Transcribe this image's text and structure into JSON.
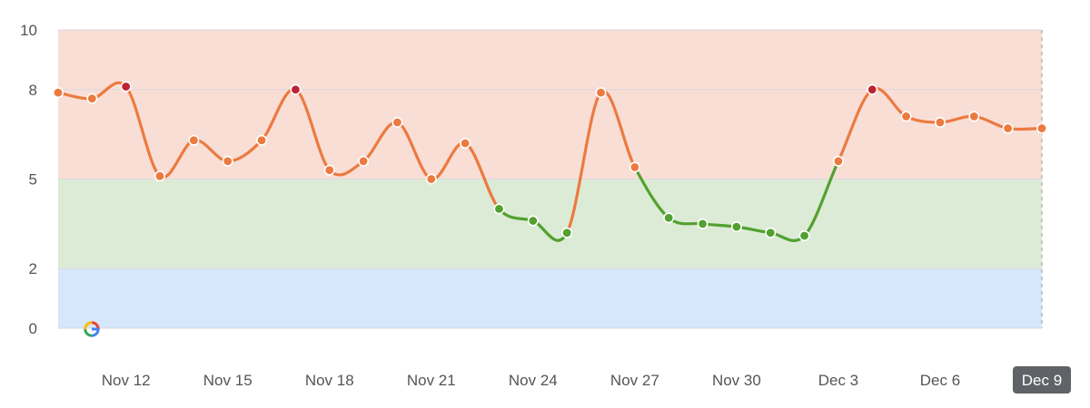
{
  "chart_data": {
    "type": "line",
    "title": "",
    "xlabel": "",
    "ylabel": "",
    "ylim": [
      0,
      10
    ],
    "y_ticks": [
      "0",
      "2",
      "5",
      "8",
      "10"
    ],
    "x_tick_labels": [
      "Nov 12",
      "Nov 15",
      "Nov 18",
      "Nov 21",
      "Nov 24",
      "Nov 27",
      "Nov 30",
      "Dec 3",
      "Dec 6",
      "Dec 9"
    ],
    "highlighted_x_label": "Dec 9",
    "grid": true,
    "zones": [
      {
        "from": 0,
        "to": 2,
        "color": "#d6e6fb"
      },
      {
        "from": 2,
        "to": 5,
        "color": "#dcebd6"
      },
      {
        "from": 5,
        "to": 10,
        "color": "#f9ded6"
      }
    ],
    "x": [
      "Nov 10",
      "Nov 11",
      "Nov 12",
      "Nov 13",
      "Nov 14",
      "Nov 15",
      "Nov 16",
      "Nov 17",
      "Nov 18",
      "Nov 19",
      "Nov 20",
      "Nov 21",
      "Nov 22",
      "Nov 23",
      "Nov 24",
      "Nov 25",
      "Nov 26",
      "Nov 27",
      "Nov 28",
      "Nov 29",
      "Nov 30",
      "Dec 1",
      "Dec 2",
      "Dec 3",
      "Dec 4",
      "Dec 5",
      "Dec 6",
      "Dec 7",
      "Dec 8",
      "Dec 9"
    ],
    "series": [
      {
        "values": [
          7.9,
          7.7,
          8.1,
          5.1,
          6.3,
          5.6,
          6.3,
          8.0,
          5.3,
          5.6,
          6.9,
          5.0,
          6.2,
          4.0,
          3.6,
          3.2,
          7.9,
          5.4,
          3.7,
          3.5,
          3.4,
          3.2,
          3.1,
          5.6,
          8.0,
          7.1,
          6.9,
          7.1,
          6.7,
          6.7
        ],
        "color_low": "#52a12f",
        "color_mid": "#ec7a3f",
        "color_high": "#be2233"
      }
    ],
    "marker_icon": "google-g-icon"
  }
}
